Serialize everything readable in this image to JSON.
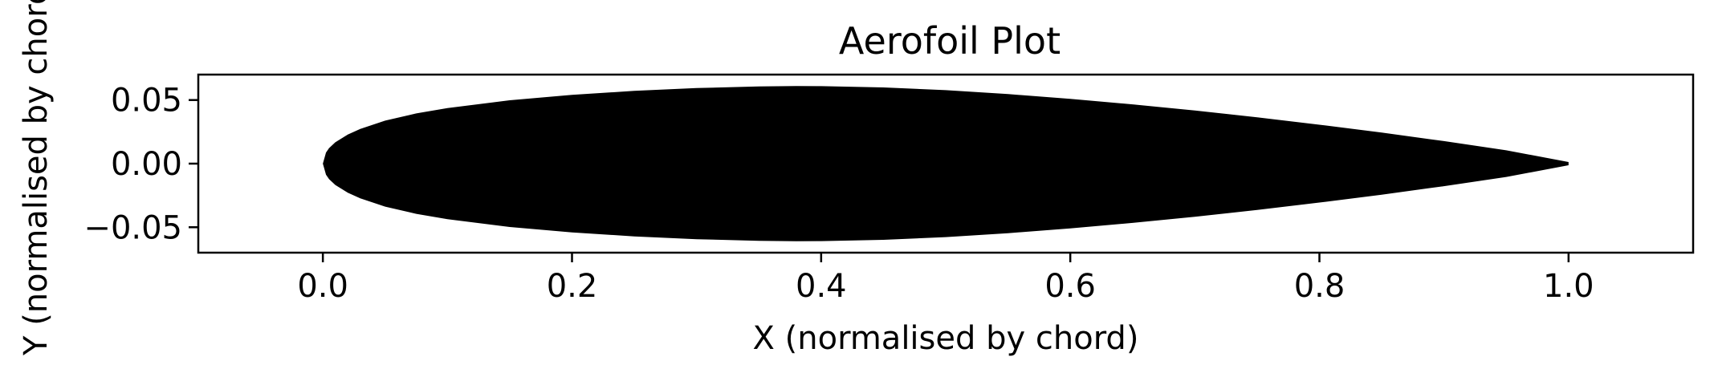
{
  "chart_data": {
    "type": "area",
    "title": "Aerofoil Plot",
    "xlabel": "X (normalised by chord)",
    "ylabel": "Y (normalised by chord)",
    "xlim": [
      -0.1,
      1.1
    ],
    "ylim": [
      -0.07,
      0.07
    ],
    "x_ticks": [
      0.0,
      0.2,
      0.4,
      0.6,
      0.8,
      1.0
    ],
    "x_tick_labels": [
      "0.0",
      "0.2",
      "0.4",
      "0.6",
      "0.8",
      "1.0"
    ],
    "y_ticks": [
      0.05,
      0.0,
      -0.05
    ],
    "y_tick_labels": [
      "0.05",
      "0.00",
      "−0.05"
    ],
    "grid": false,
    "fill_color": "#000000",
    "upper_surface": {
      "x": [
        0.0,
        0.0025,
        0.005,
        0.01,
        0.02,
        0.03,
        0.05,
        0.075,
        0.1,
        0.15,
        0.2,
        0.25,
        0.3,
        0.35,
        0.38,
        0.4,
        0.45,
        0.5,
        0.55,
        0.6,
        0.65,
        0.7,
        0.75,
        0.8,
        0.85,
        0.9,
        0.95,
        1.0
      ],
      "y": [
        0.0,
        0.0087,
        0.0122,
        0.0168,
        0.0229,
        0.0273,
        0.0338,
        0.0395,
        0.0437,
        0.0498,
        0.0541,
        0.0572,
        0.0594,
        0.0607,
        0.061,
        0.0609,
        0.0599,
        0.0578,
        0.0547,
        0.0509,
        0.0466,
        0.0418,
        0.0364,
        0.0306,
        0.0244,
        0.0177,
        0.0105,
        0.0013
      ]
    },
    "lower_surface": {
      "x": [
        0.0,
        0.0025,
        0.005,
        0.01,
        0.02,
        0.03,
        0.05,
        0.075,
        0.1,
        0.15,
        0.2,
        0.25,
        0.3,
        0.35,
        0.38,
        0.4,
        0.45,
        0.5,
        0.55,
        0.6,
        0.65,
        0.7,
        0.75,
        0.8,
        0.85,
        0.9,
        0.95,
        1.0
      ],
      "y": [
        0.0,
        -0.0087,
        -0.0122,
        -0.0168,
        -0.0229,
        -0.0273,
        -0.0338,
        -0.0395,
        -0.0437,
        -0.0498,
        -0.0541,
        -0.0572,
        -0.0594,
        -0.0607,
        -0.061,
        -0.0609,
        -0.0599,
        -0.0578,
        -0.0547,
        -0.0509,
        -0.0466,
        -0.0418,
        -0.0364,
        -0.0306,
        -0.0244,
        -0.0177,
        -0.0105,
        -0.0013
      ]
    }
  }
}
